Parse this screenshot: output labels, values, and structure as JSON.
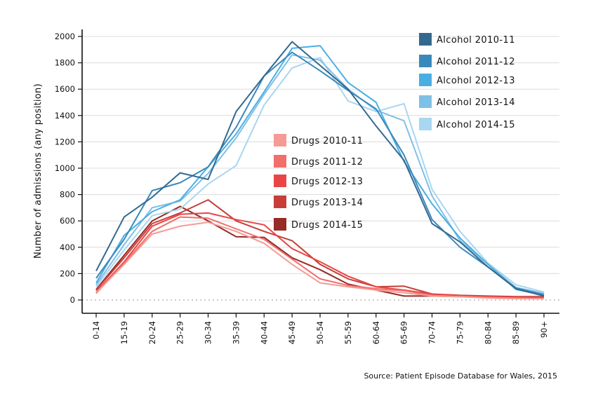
{
  "chart_data": {
    "type": "line",
    "title": "",
    "xlabel": "",
    "ylabel": "Number of admissions (any position)",
    "ylim": [
      0,
      2000
    ],
    "yticks": [
      0,
      200,
      400,
      600,
      800,
      1000,
      1200,
      1400,
      1600,
      1800,
      2000
    ],
    "grid": true,
    "categories": [
      "0-14",
      "15-19",
      "20-24",
      "25-29",
      "30-34",
      "35-39",
      "40-44",
      "45-49",
      "50-54",
      "55-59",
      "60-64",
      "65-69",
      "70-74",
      "75-79",
      "80-84",
      "85-89",
      "90+"
    ],
    "series": [
      {
        "name": "Alcohol 2010-11",
        "color": "#33698f",
        "values": [
          220,
          630,
          780,
          965,
          915,
          1430,
          1700,
          1960,
          1780,
          1600,
          1320,
          1060,
          580,
          440,
          250,
          85,
          30
        ]
      },
      {
        "name": "Alcohol 2011-12",
        "color": "#3a89bc",
        "values": [
          165,
          460,
          830,
          890,
          1010,
          1310,
          1700,
          1880,
          1740,
          1590,
          1450,
          1100,
          610,
          400,
          250,
          90,
          40
        ]
      },
      {
        "name": "Alcohol 2012-13",
        "color": "#4aaee3",
        "values": [
          130,
          490,
          670,
          760,
          1010,
          1260,
          1580,
          1910,
          1930,
          1650,
          1500,
          1050,
          730,
          470,
          270,
          80,
          35
        ]
      },
      {
        "name": "Alcohol 2013-14",
        "color": "#7fc0e6",
        "values": [
          115,
          420,
          700,
          750,
          960,
          1230,
          1560,
          1860,
          1820,
          1600,
          1440,
          1360,
          790,
          450,
          270,
          95,
          50
        ]
      },
      {
        "name": "Alcohol 2014-15",
        "color": "#a9d6f0",
        "values": [
          100,
          380,
          640,
          690,
          880,
          1020,
          1480,
          1760,
          1840,
          1510,
          1430,
          1490,
          840,
          520,
          280,
          115,
          60
        ]
      },
      {
        "name": "Drugs 2010-11",
        "color": "#f59a94",
        "values": [
          55,
          270,
          500,
          560,
          590,
          520,
          430,
          270,
          130,
          100,
          75,
          55,
          30,
          25,
          15,
          10,
          10
        ]
      },
      {
        "name": "Drugs 2011-12",
        "color": "#f06e6b",
        "values": [
          50,
          280,
          520,
          630,
          620,
          540,
          460,
          310,
          160,
          110,
          85,
          70,
          35,
          25,
          20,
          15,
          10
        ]
      },
      {
        "name": "Drugs 2012-13",
        "color": "#e84646",
        "values": [
          60,
          290,
          560,
          650,
          660,
          610,
          570,
          390,
          290,
          180,
          100,
          75,
          45,
          30,
          25,
          20,
          20
        ]
      },
      {
        "name": "Drugs 2013-14",
        "color": "#c63e37",
        "values": [
          75,
          320,
          580,
          660,
          760,
          600,
          520,
          450,
          270,
          160,
          100,
          105,
          45,
          35,
          30,
          25,
          25
        ]
      },
      {
        "name": "Drugs 2014-15",
        "color": "#962a26",
        "values": [
          80,
          340,
          600,
          710,
          600,
          480,
          475,
          320,
          230,
          120,
          75,
          30,
          30,
          25,
          25,
          20,
          20
        ]
      }
    ],
    "legend": [
      {
        "group": "alcohol",
        "placement": "top-right"
      },
      {
        "group": "drugs",
        "placement": "center"
      }
    ],
    "source": "Source: Patient Episode Database for Wales, 2015"
  }
}
